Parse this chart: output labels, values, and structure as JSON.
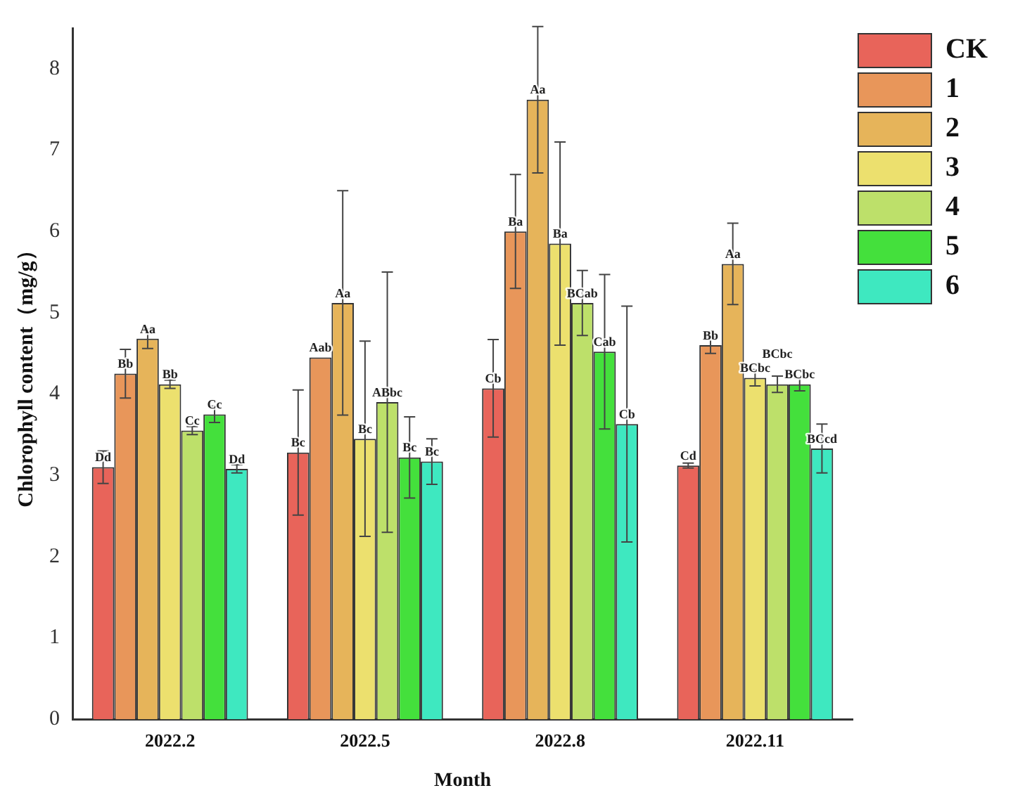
{
  "chart_data": {
    "type": "bar",
    "xlabel": "Month",
    "ylabel": "Chlorophyll content（mg/g）",
    "categories": [
      "2022.2",
      "2022.5",
      "2022.8",
      "2022.11"
    ],
    "ylim": [
      0,
      8.5
    ],
    "yticks": [
      0,
      1,
      2,
      3,
      4,
      5,
      6,
      7,
      8
    ],
    "grid": false,
    "legend": "top right",
    "series": [
      {
        "name": "CK",
        "color": "#e8645a",
        "values": [
          3.1,
          3.28,
          4.07,
          3.12
        ],
        "errors": [
          0.2,
          0.77,
          0.6,
          0.03
        ],
        "value_labels": [
          "Dd",
          "Bc",
          "Cb",
          "Cd"
        ]
      },
      {
        "name": "1",
        "color": "#e8965a",
        "values": [
          4.25,
          4.45,
          6.0,
          4.6
        ],
        "errors": [
          0.3,
          null,
          0.7,
          0.1
        ],
        "value_labels": [
          "Bb",
          "Aab",
          "Ba",
          "Bb"
        ]
      },
      {
        "name": "2",
        "color": "#e6b45a",
        "values": [
          4.68,
          5.12,
          7.62,
          5.6
        ],
        "errors": [
          0.12,
          1.38,
          0.9,
          0.5
        ],
        "value_labels": [
          "Aa",
          "Aa",
          "Aa",
          "Aa"
        ]
      },
      {
        "name": "3",
        "color": "#ece06e",
        "values": [
          4.12,
          3.45,
          5.85,
          4.2
        ],
        "errors": [
          0.05,
          1.2,
          1.25,
          0.1
        ],
        "value_labels": [
          "Bb",
          "Bc",
          "Ba",
          "BCbc"
        ]
      },
      {
        "name": "4",
        "color": "#bde06a",
        "values": [
          3.55,
          3.9,
          5.12,
          4.12
        ],
        "errors": [
          0.05,
          1.6,
          0.4,
          0.1
        ],
        "value_labels": [
          "Cc",
          "ABbc",
          "BCab",
          "BCbc"
        ]
      },
      {
        "name": "5",
        "color": "#44e03c",
        "values": [
          3.75,
          3.22,
          4.52,
          4.12
        ],
        "errors": [
          0.1,
          0.5,
          0.95,
          0.08
        ],
        "value_labels": [
          "Cc",
          "Bc",
          "Cab",
          "BCbc"
        ]
      },
      {
        "name": "6",
        "color": "#3ee8c0",
        "values": [
          3.08,
          3.17,
          3.63,
          3.33
        ],
        "errors": [
          0.05,
          0.28,
          1.45,
          0.3
        ],
        "value_labels": [
          "Dd",
          "Bc",
          "Cb",
          "BCcd"
        ]
      }
    ]
  }
}
